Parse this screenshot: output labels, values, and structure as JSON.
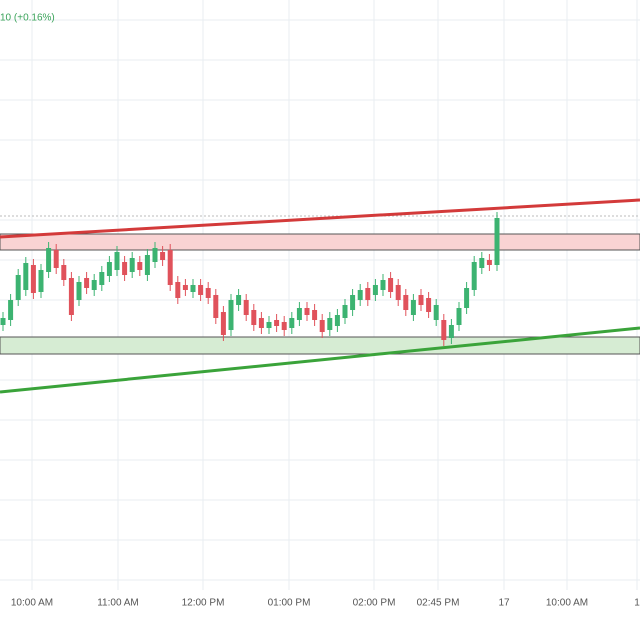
{
  "header": {
    "change": "10 (+0.16%)"
  },
  "x_axis": {
    "labels": [
      "10:00 AM",
      "11:00 AM",
      "12:00 PM",
      "01:00 PM",
      "02:00 PM",
      "02:45 PM",
      "17",
      "10:00 AM",
      "1"
    ]
  }
}
